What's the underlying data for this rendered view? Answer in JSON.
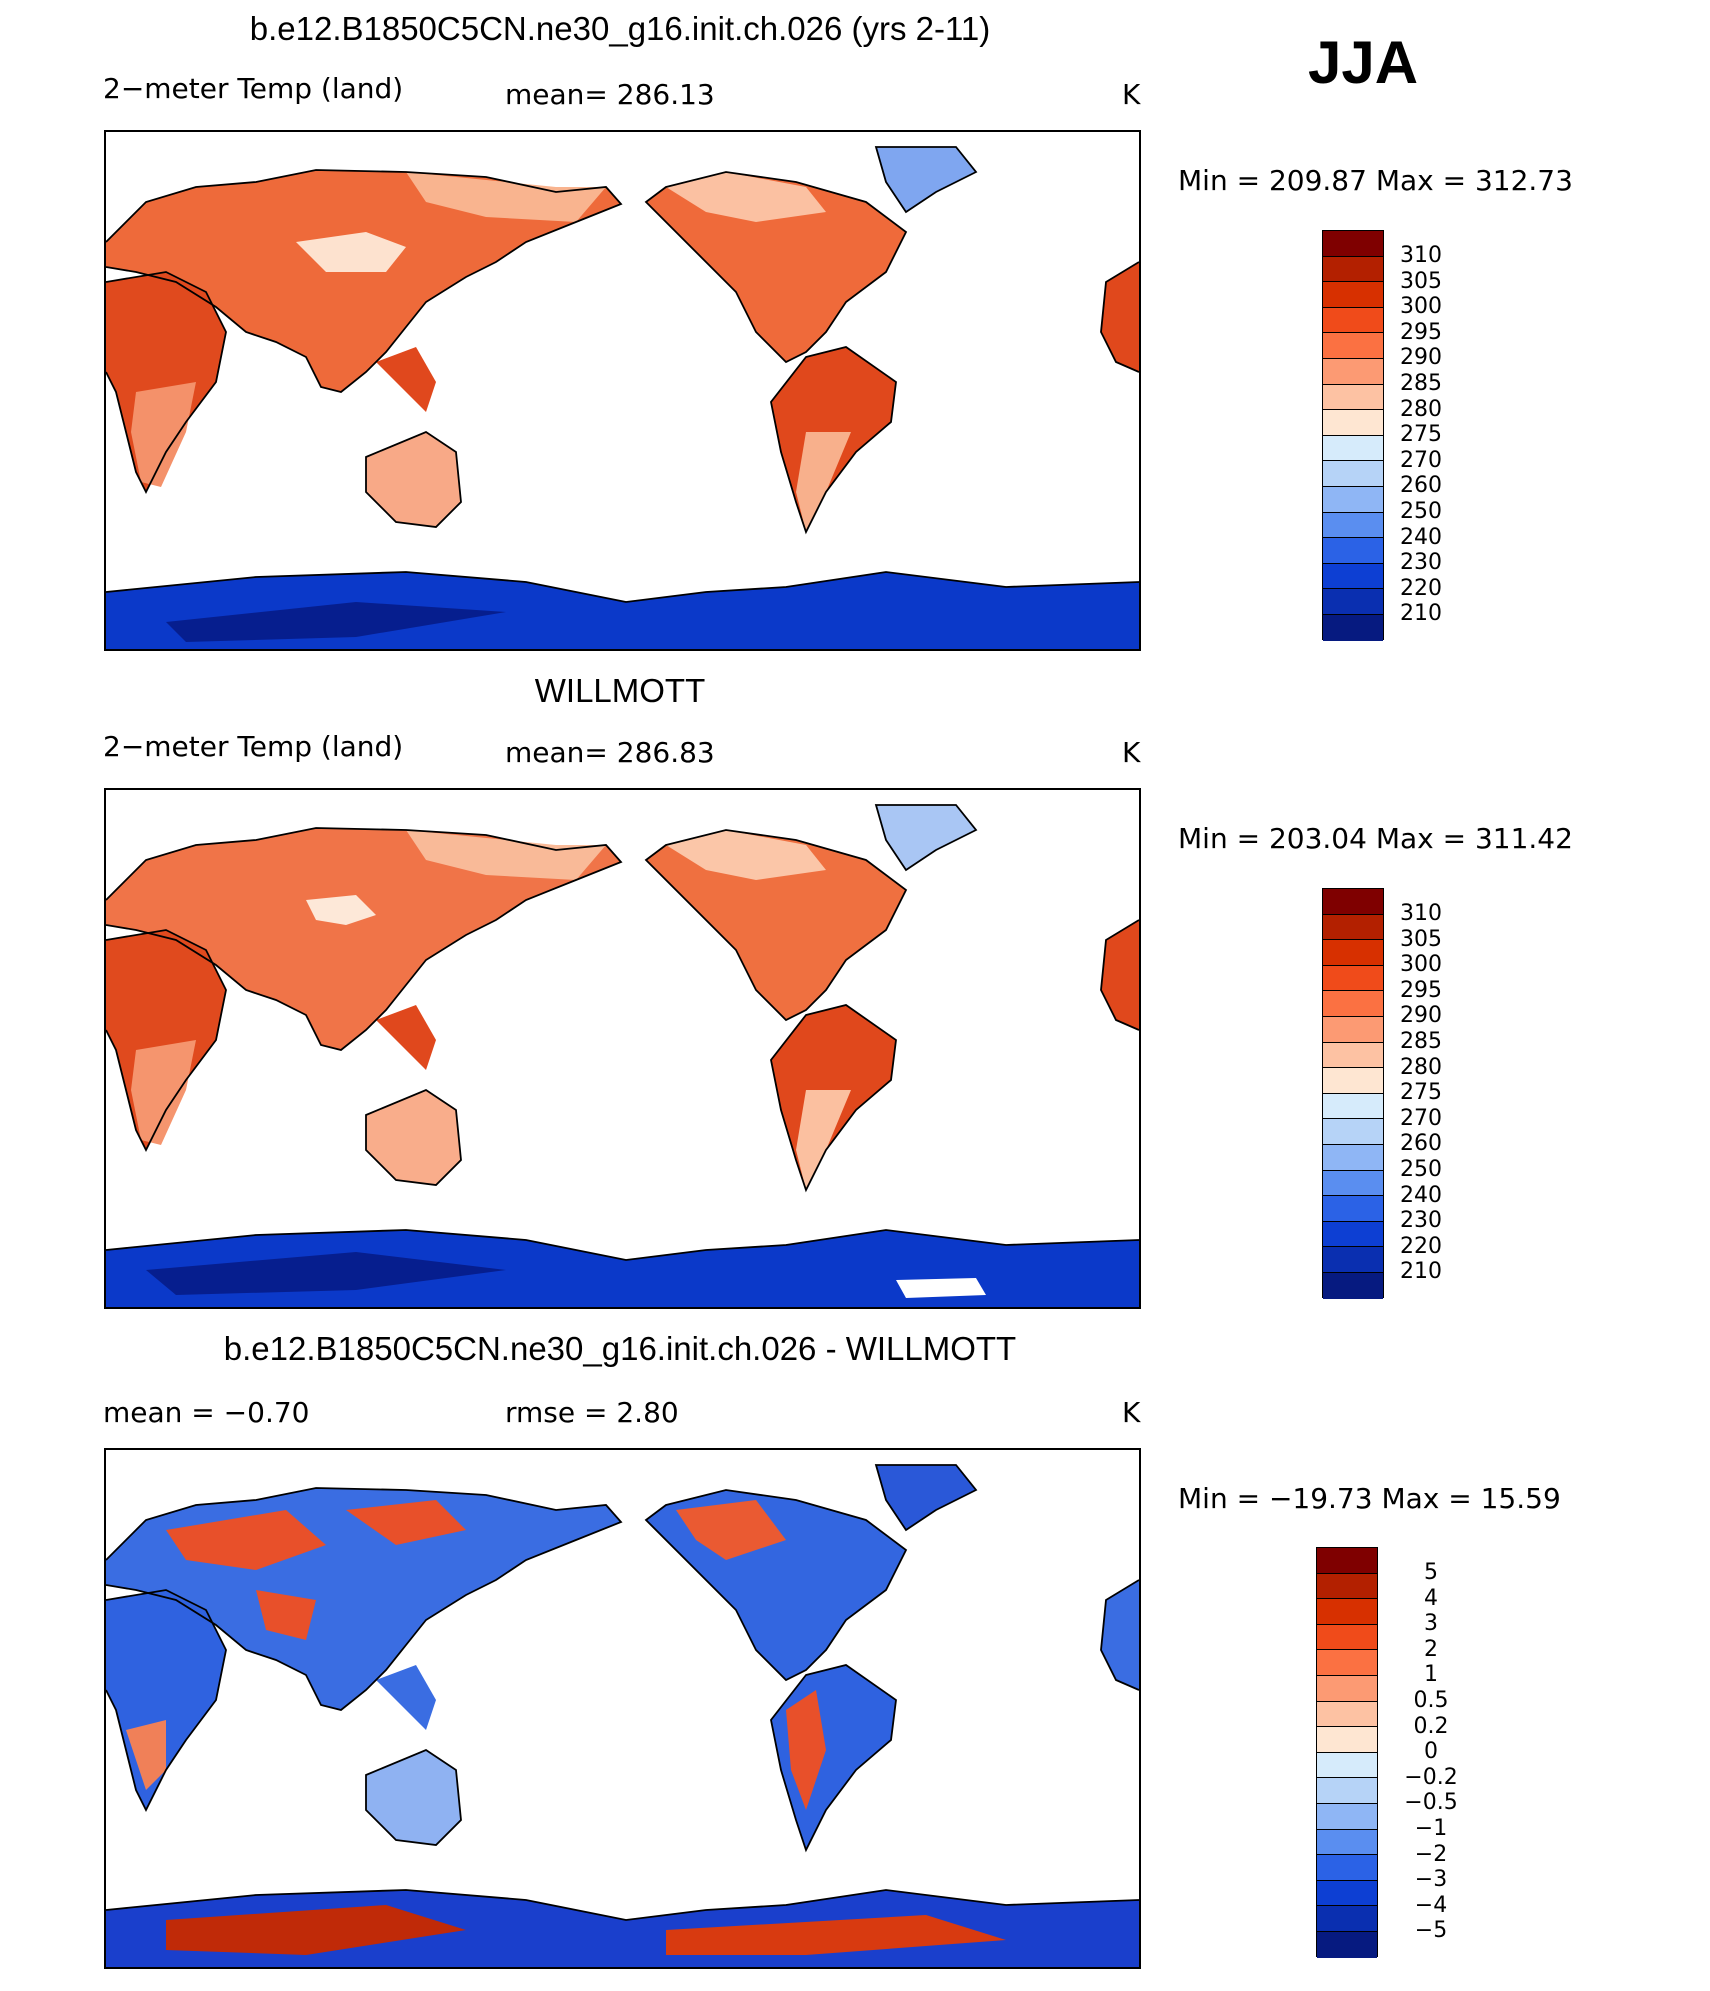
{
  "season": "JJA",
  "colors": {
    "warm_scale": [
      "#7f0000",
      "#b32000",
      "#d73000",
      "#f04b1a",
      "#fb7142",
      "#fc9a73",
      "#fdc2a3",
      "#fee6d2",
      "#d6ebfb",
      "#b6d3f7",
      "#8fb6f5",
      "#5a8ef0",
      "#2b62e6",
      "#0d3fd3",
      "#0a2fb0",
      "#061a80"
    ],
    "land_warm": "#ee6a3a",
    "land_cool": "#f6a47e",
    "antarctic": "#0b39c9",
    "antarctic_deep": "#061e8e",
    "greenland": "#7fa6f0",
    "diff_blue": "#2f62e0",
    "diff_red": "#e8502a"
  },
  "panels": [
    {
      "title": "b.e12.B1850C5CN.ne30_g16.init.ch.026 (yrs 2-11)",
      "left_label": "2−meter Temp (land)",
      "center_label": "mean=  286.13",
      "units": "K",
      "minmax": "Min  =  209.87  Max  =  312.73",
      "colorbar_labels": [
        "310",
        "305",
        "300",
        "295",
        "290",
        "285",
        "280",
        "275",
        "270",
        "260",
        "250",
        "240",
        "230",
        "220",
        "210"
      ]
    },
    {
      "title": "WILLMOTT",
      "left_label": "2−meter Temp (land)",
      "center_label": "mean=  286.83",
      "units": "K",
      "minmax": "Min  =  203.04  Max  =  311.42",
      "colorbar_labels": [
        "310",
        "305",
        "300",
        "295",
        "290",
        "285",
        "280",
        "275",
        "270",
        "260",
        "250",
        "240",
        "230",
        "220",
        "210"
      ]
    },
    {
      "title": "b.e12.B1850C5CN.ne30_g16.init.ch.026 - WILLMOTT",
      "left_label": "mean  =     −0.70",
      "center_label": "rmse  =      2.80",
      "units": "K",
      "minmax": "Min  =  −19.73  Max  =     15.59",
      "colorbar_labels": [
        "5",
        "4",
        "3",
        "2",
        "1",
        "0.5",
        "0.2",
        "0",
        "−0.2",
        "−0.5",
        "−1",
        "−2",
        "−3",
        "−4",
        "−5"
      ]
    }
  ]
}
